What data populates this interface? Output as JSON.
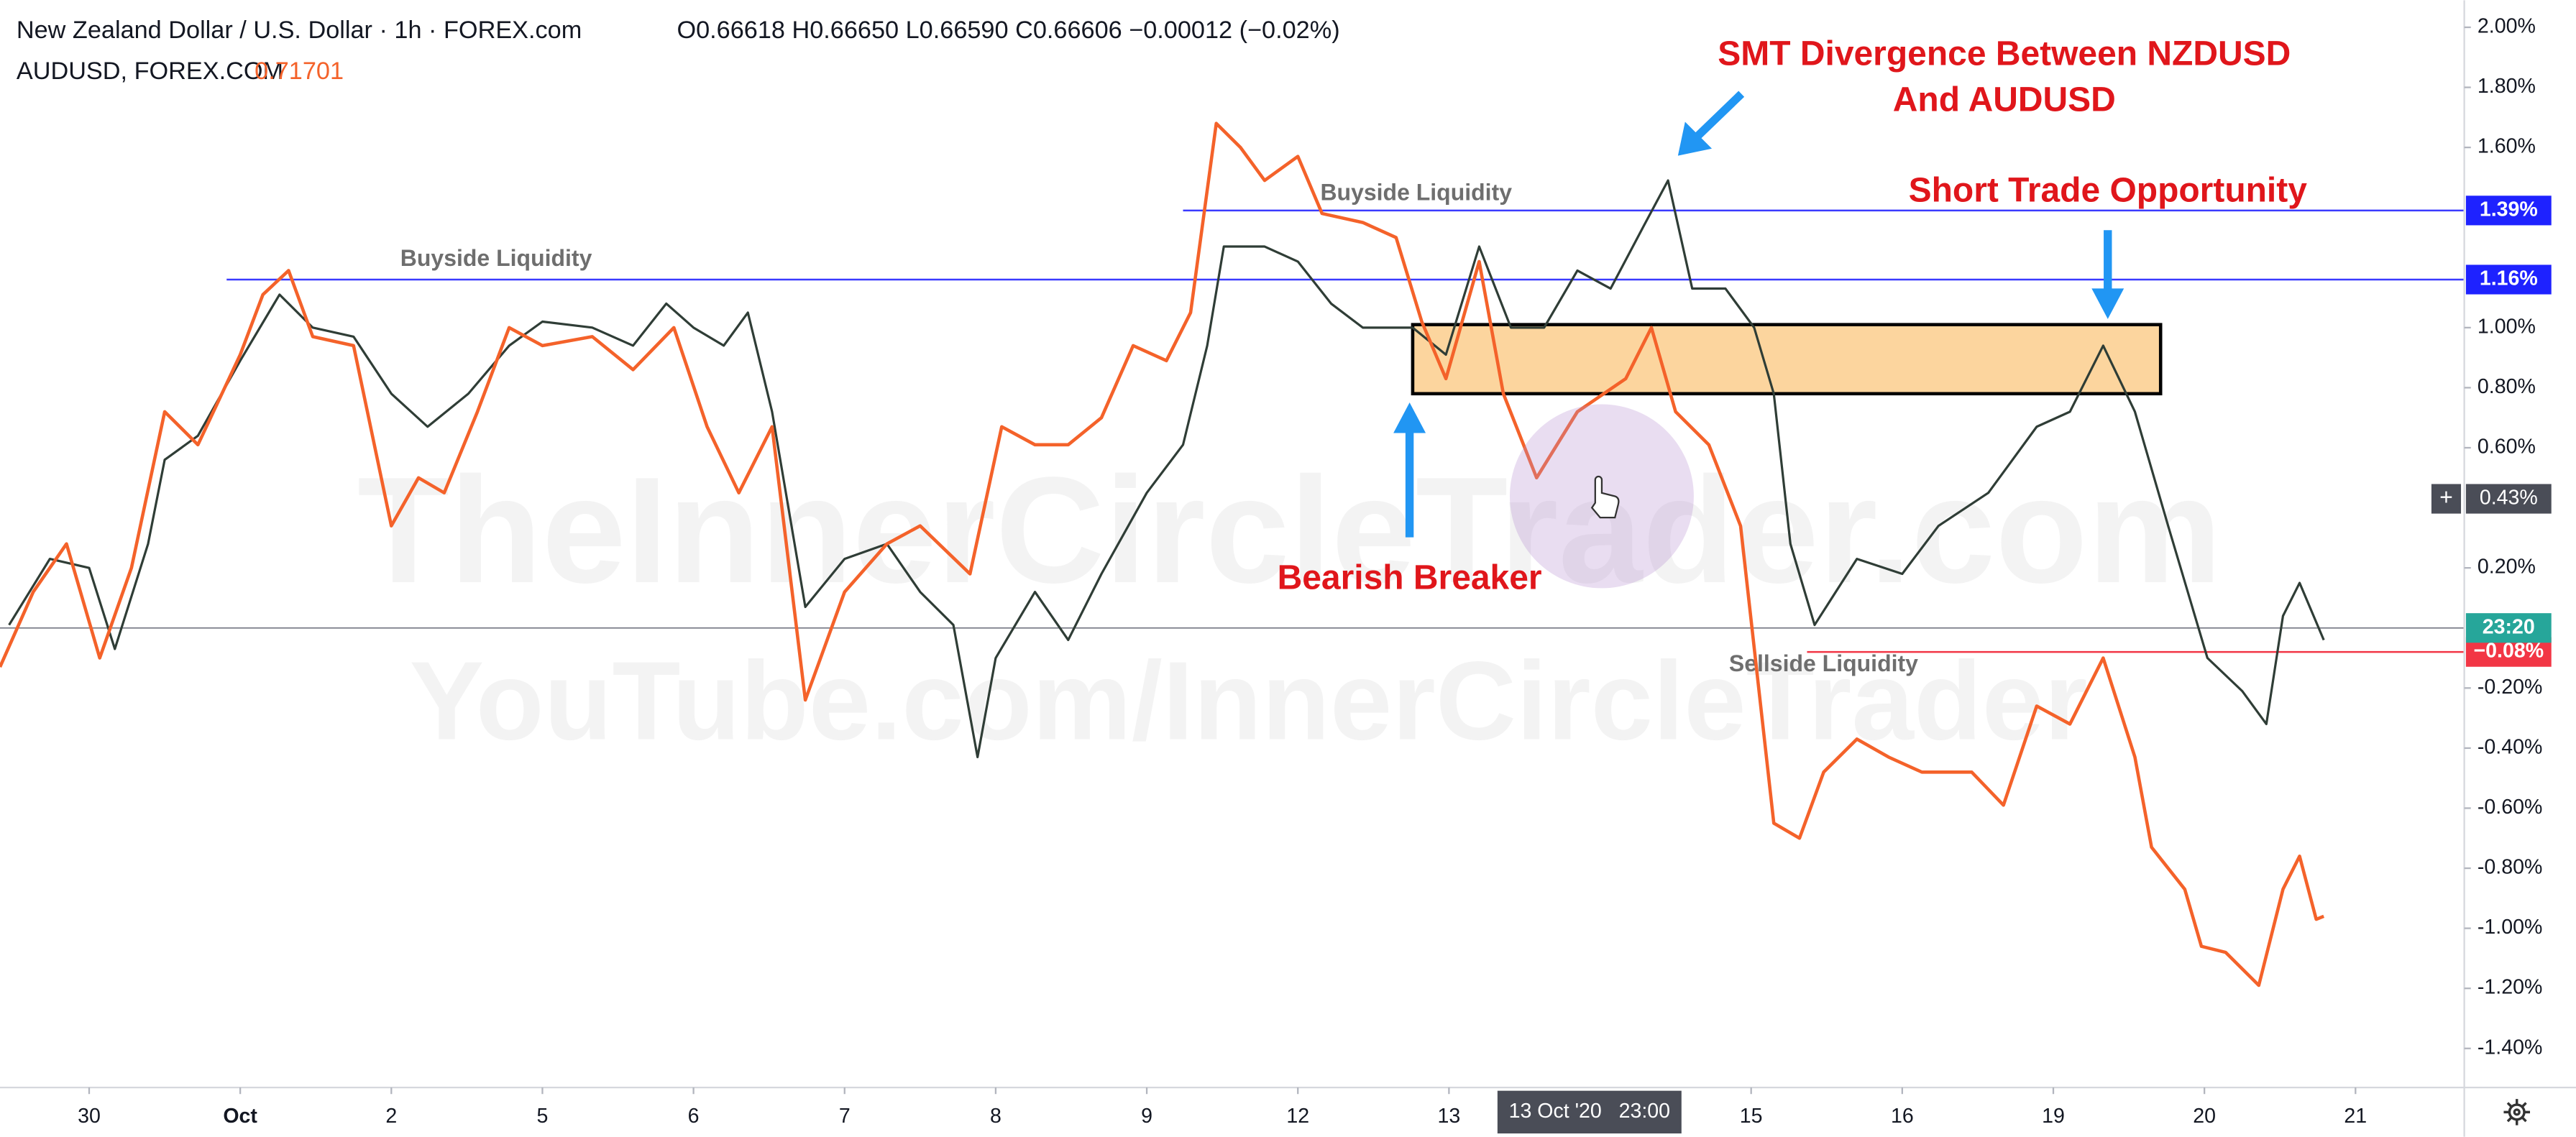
{
  "header": {
    "ohlc": [
      "O0.66618",
      "H0.66650",
      "L0.66590",
      "C0.66606",
      "−0.00012 (−0.02%)"
    ]
  },
  "watermark": [
    "TheInnerCircleTrader.com",
    "YouTube.com/InnerCircleTrader"
  ],
  "chart_data": {
    "type": "line",
    "series": [
      {
        "name": "New Zealand Dollar / U.S. Dollar · 1h · FOREX.com",
        "color": "#2f3d36",
        "x": [
          -0.53,
          -0.26,
          0,
          0.17,
          0.39,
          0.5,
          0.72,
          1,
          1.26,
          1.48,
          1.75,
          2,
          2.24,
          2.51,
          2.78,
          3,
          3.33,
          3.6,
          3.82,
          4,
          4.2,
          4.36,
          4.52,
          4.74,
          5,
          5.28,
          5.5,
          5.72,
          5.88,
          6,
          6.26,
          6.48,
          6.7,
          7,
          7.24,
          7.4,
          7.51,
          7.78,
          8,
          8.22,
          8.43,
          8.76,
          8.98,
          9.2,
          9.41,
          9.63,
          9.85,
          10.07,
          10.28,
          10.45,
          10.61,
          10.83,
          11.02,
          11.15,
          11.26,
          11.42,
          11.7,
          12,
          12.24,
          12.57,
          12.89,
          13.11,
          13.33,
          13.54,
          13.76,
          14.02,
          14.25,
          14.41,
          14.52,
          14.63,
          14.79
        ],
        "values": [
          0.01,
          0.23,
          0.2,
          -0.07,
          0.28,
          0.56,
          0.64,
          0.89,
          1.11,
          1.0,
          0.97,
          0.78,
          0.67,
          0.78,
          0.94,
          1.02,
          1.0,
          0.94,
          1.08,
          1.0,
          0.94,
          1.05,
          0.72,
          0.07,
          0.23,
          0.28,
          0.12,
          0.01,
          -0.43,
          -0.1,
          0.12,
          -0.04,
          0.18,
          0.45,
          0.61,
          0.94,
          1.27,
          1.27,
          1.22,
          1.08,
          1.0,
          1.0,
          0.91,
          1.27,
          1.0,
          1.0,
          1.19,
          1.13,
          1.33,
          1.49,
          1.13,
          1.13,
          1.0,
          0.78,
          0.28,
          0.01,
          0.23,
          0.18,
          0.34,
          0.45,
          0.67,
          0.72,
          0.94,
          0.72,
          0.34,
          -0.1,
          -0.21,
          -0.32,
          0.04,
          0.15,
          -0.04
        ]
      },
      {
        "name": "AUDUSD, FOREX.COM",
        "color": "#f4622a",
        "last": "0.71701",
        "x": [
          -0.59,
          -0.37,
          -0.15,
          0.07,
          0.28,
          0.5,
          0.72,
          1,
          1.15,
          1.32,
          1.48,
          1.75,
          2,
          2.18,
          2.35,
          2.57,
          2.78,
          3,
          3.33,
          3.6,
          3.87,
          4.09,
          4.3,
          4.52,
          4.74,
          5,
          5.28,
          5.5,
          5.83,
          6.04,
          6.26,
          6.48,
          6.7,
          6.91,
          7.13,
          7.29,
          7.46,
          7.62,
          7.78,
          8,
          8.16,
          8.43,
          8.65,
          8.82,
          8.98,
          9.2,
          9.36,
          9.58,
          9.85,
          10.17,
          10.34,
          10.5,
          10.72,
          10.93,
          11.15,
          11.32,
          11.48,
          11.7,
          11.91,
          12.13,
          12.46,
          12.67,
          12.89,
          13.11,
          13.33,
          13.54,
          13.65,
          13.87,
          13.98,
          14.14,
          14.36,
          14.52,
          14.63,
          14.74,
          14.79
        ],
        "values": [
          -0.13,
          0.12,
          0.28,
          -0.1,
          0.2,
          0.72,
          0.61,
          0.91,
          1.11,
          1.19,
          0.97,
          0.94,
          0.34,
          0.5,
          0.45,
          0.72,
          1.0,
          0.94,
          0.97,
          0.86,
          1.0,
          0.67,
          0.45,
          0.67,
          -0.24,
          0.12,
          0.28,
          0.34,
          0.18,
          0.67,
          0.61,
          0.61,
          0.7,
          0.94,
          0.89,
          1.05,
          1.68,
          1.6,
          1.49,
          1.57,
          1.38,
          1.35,
          1.3,
          1.02,
          0.83,
          1.22,
          0.78,
          0.5,
          0.72,
          0.83,
          1.0,
          0.72,
          0.61,
          0.34,
          -0.65,
          -0.7,
          -0.48,
          -0.37,
          -0.43,
          -0.48,
          -0.48,
          -0.59,
          -0.26,
          -0.32,
          -0.1,
          -0.43,
          -0.73,
          -0.87,
          -1.06,
          -1.08,
          -1.19,
          -0.87,
          -0.76,
          -0.97,
          -0.96
        ]
      }
    ],
    "xlim": [
      -0.59,
      15.72
    ],
    "xticks": [
      {
        "value": 0,
        "label": "30"
      },
      {
        "value": 1,
        "label": "Oct"
      },
      {
        "value": 2,
        "label": "2"
      },
      {
        "value": 3,
        "label": "5"
      },
      {
        "value": 4,
        "label": "6"
      },
      {
        "value": 5,
        "label": "7"
      },
      {
        "value": 6,
        "label": "8"
      },
      {
        "value": 7,
        "label": "9"
      },
      {
        "value": 8,
        "label": "12"
      },
      {
        "value": 9,
        "label": "13"
      },
      {
        "value": 11,
        "label": "15"
      },
      {
        "value": 12,
        "label": "16"
      },
      {
        "value": 13,
        "label": "19"
      },
      {
        "value": 14,
        "label": "20"
      },
      {
        "value": 15,
        "label": "21"
      }
    ],
    "ylim": [
      -1.53,
      2.09
    ],
    "yticks": [
      {
        "value": 2.0,
        "label": "2.00%"
      },
      {
        "value": 1.8,
        "label": "1.80%"
      },
      {
        "value": 1.6,
        "label": "1.60%"
      },
      {
        "value": 1.0,
        "label": "1.00%"
      },
      {
        "value": 0.8,
        "label": "0.80%"
      },
      {
        "value": 0.6,
        "label": "0.60%"
      },
      {
        "value": 0.2,
        "label": "0.20%"
      },
      {
        "value": -0.2,
        "label": "-0.20%"
      },
      {
        "value": -0.4,
        "label": "-0.40%"
      },
      {
        "value": -0.6,
        "label": "-0.60%"
      },
      {
        "value": -0.8,
        "label": "-0.80%"
      },
      {
        "value": -1.0,
        "label": "-1.00%"
      },
      {
        "value": -1.2,
        "label": "-1.20%"
      },
      {
        "value": -1.4,
        "label": "-1.40%"
      }
    ],
    "levels": [
      {
        "value": 1.16,
        "tag": "1.16%",
        "name": "Buyside Liquidity",
        "start": 0.91,
        "color": "#3a3aff"
      },
      {
        "value": 1.39,
        "tag": "1.39%",
        "name": "Buyside Liquidity",
        "start": 7.24,
        "color": "#3a3aff"
      },
      {
        "value": -0.08,
        "tag": "−0.08%",
        "name": "Sellside Liquidity",
        "start": 11.37,
        "color": "#f23645"
      }
    ],
    "last_line": {
      "value": 0,
      "countdown": "23:20"
    },
    "crosshair": {
      "x": 9.93,
      "x_label": "13 Oct '20   23:00",
      "y": 0.43,
      "y_label": "0.43%"
    },
    "zone": {
      "x": [
        8.76,
        13.71
      ],
      "y": [
        0.78,
        1.01
      ]
    },
    "annotations": [
      "SMT Divergence Between NZDUSD",
      "And AUDUSD",
      "Short Trade Opportunity",
      "Bearish Breaker"
    ]
  }
}
